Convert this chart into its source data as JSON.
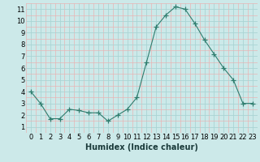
{
  "x": [
    0,
    1,
    2,
    3,
    4,
    5,
    6,
    7,
    8,
    9,
    10,
    11,
    12,
    13,
    14,
    15,
    16,
    17,
    18,
    19,
    20,
    21,
    22,
    23
  ],
  "y": [
    4.0,
    3.0,
    1.7,
    1.7,
    2.5,
    2.4,
    2.2,
    2.2,
    1.5,
    2.0,
    2.5,
    3.5,
    6.5,
    9.5,
    10.5,
    11.2,
    11.0,
    9.8,
    8.4,
    7.2,
    6.0,
    5.0,
    3.0,
    3.0
  ],
  "line_color": "#2e7d6e",
  "marker": "+",
  "marker_size": 4,
  "bg_color": "#cce9e9",
  "grid_major_color": "#aad4d4",
  "grid_minor_color": "#e8b4b4",
  "xlabel": "Humidex (Indice chaleur)",
  "ylim": [
    0.5,
    11.5
  ],
  "xlim": [
    -0.5,
    23.5
  ],
  "yticks": [
    1,
    2,
    3,
    4,
    5,
    6,
    7,
    8,
    9,
    10,
    11
  ],
  "xticks": [
    0,
    1,
    2,
    3,
    4,
    5,
    6,
    7,
    8,
    9,
    10,
    11,
    12,
    13,
    14,
    15,
    16,
    17,
    18,
    19,
    20,
    21,
    22,
    23
  ],
  "tick_fontsize": 6,
  "xlabel_fontsize": 7
}
